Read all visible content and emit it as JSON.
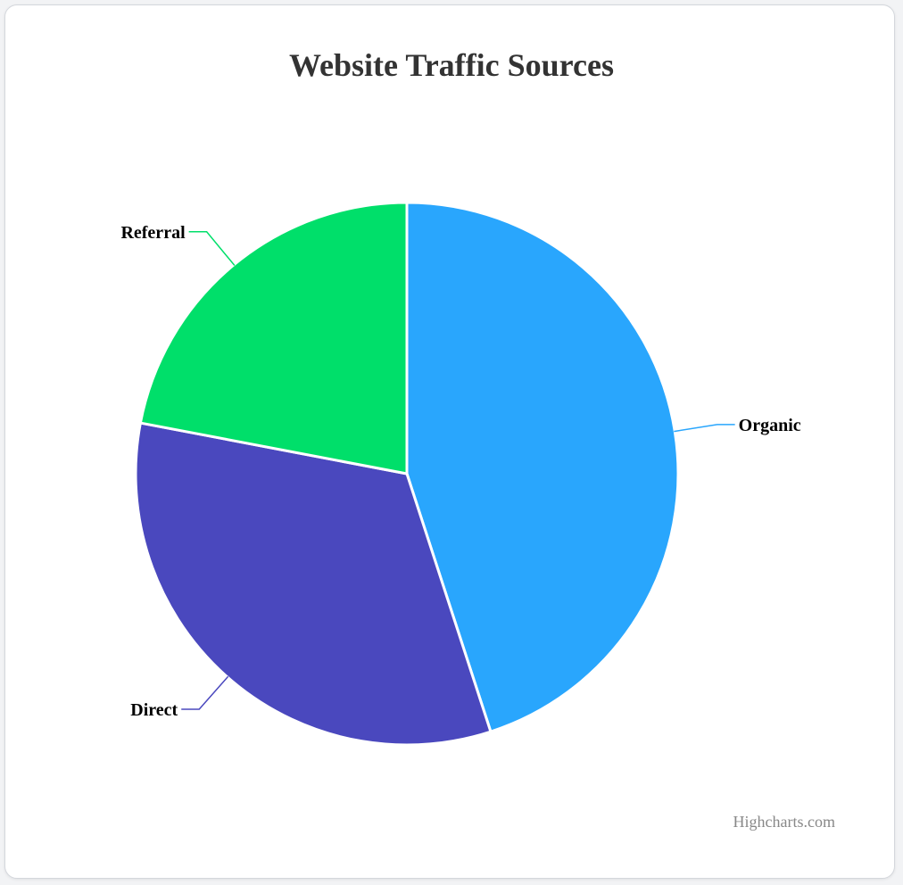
{
  "chart_data": {
    "type": "pie",
    "title": "Website Traffic Sources",
    "categories": [
      "Organic",
      "Direct",
      "Referral"
    ],
    "values": [
      45,
      33,
      22
    ],
    "colors": [
      "#29a6fd",
      "#4a48be",
      "#00df6a"
    ],
    "legend": "none",
    "start_angle_deg": 0
  },
  "credits": {
    "label": "Highcharts.com"
  }
}
